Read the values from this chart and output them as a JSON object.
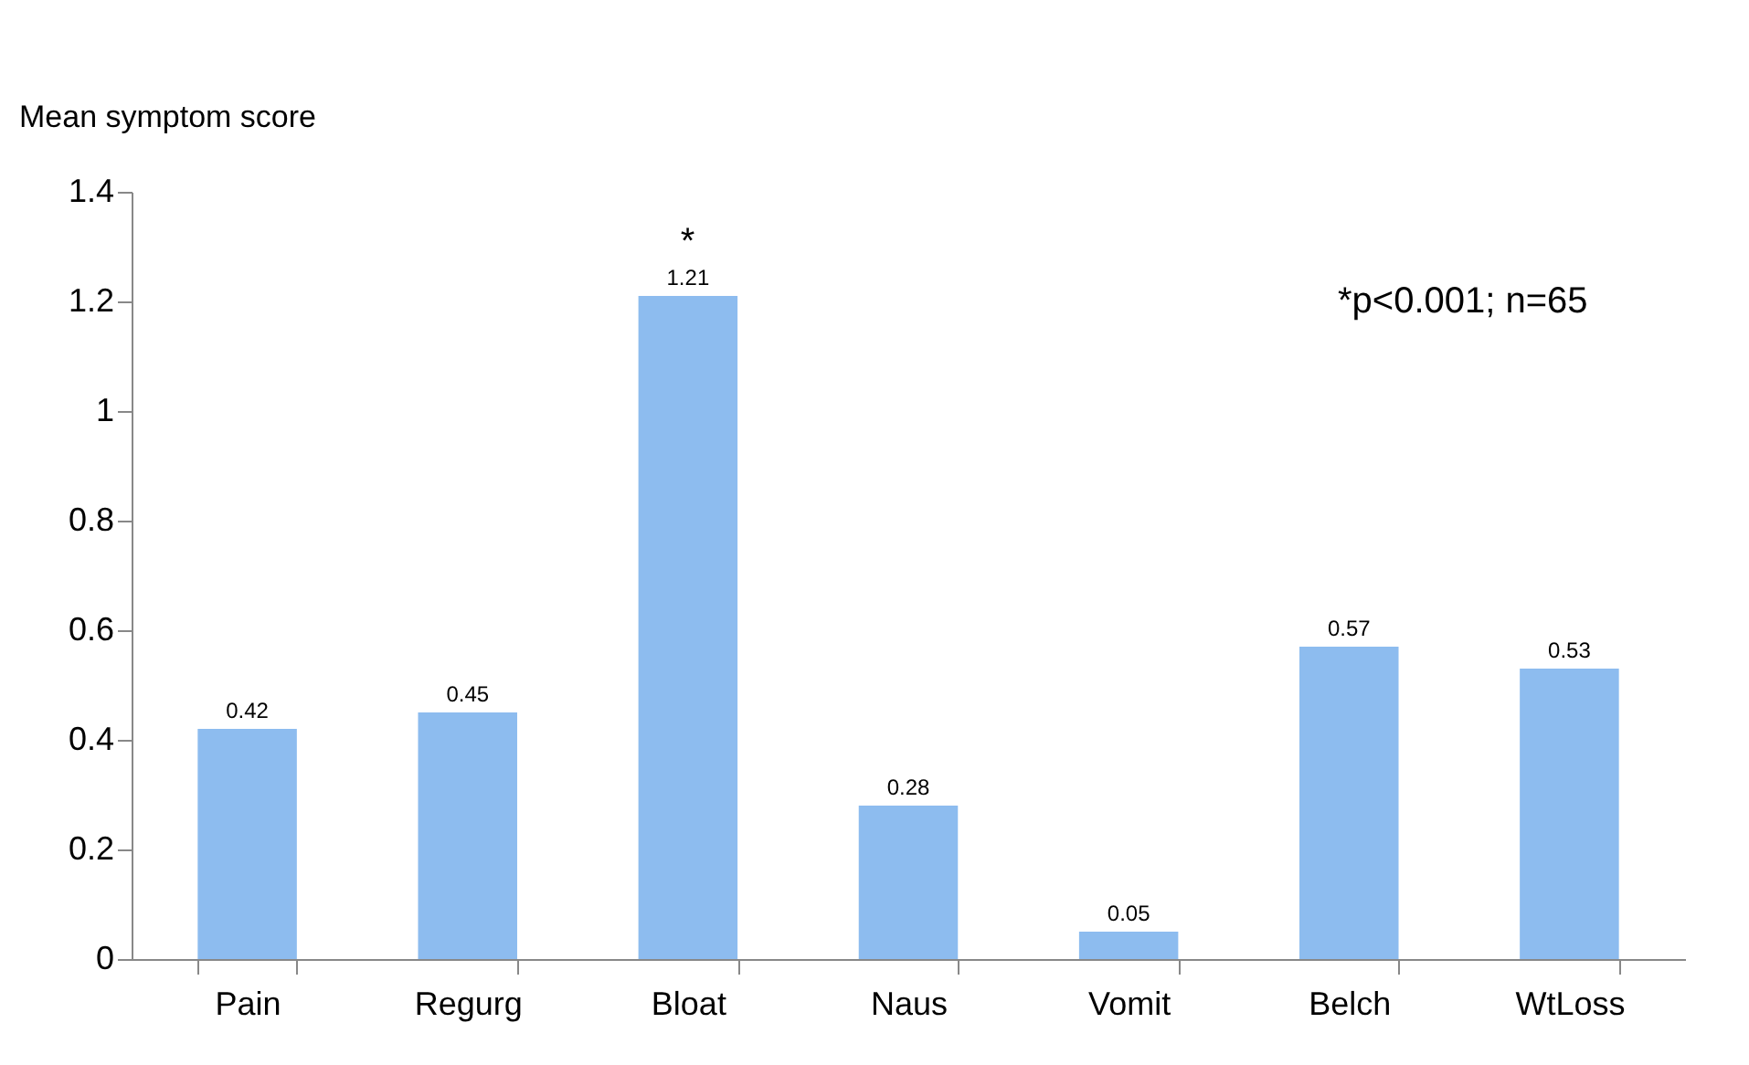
{
  "chart_data": {
    "type": "bar",
    "ylabel": "Mean symptom score",
    "categories": [
      "Pain",
      "Regurg",
      "Bloat",
      "Naus",
      "Vomit",
      "Belch",
      "WtLoss"
    ],
    "values": [
      0.42,
      0.45,
      1.21,
      0.28,
      0.05,
      0.57,
      0.53
    ],
    "color": "#8dbcef",
    "ylim": [
      0,
      1.4
    ],
    "yticks": [
      0,
      0.2,
      0.4,
      0.6,
      0.8,
      1,
      1.2,
      1.4
    ],
    "grid": false,
    "data_labels": true,
    "annotations": [
      "*",
      "*p<0.001; n=65"
    ]
  }
}
